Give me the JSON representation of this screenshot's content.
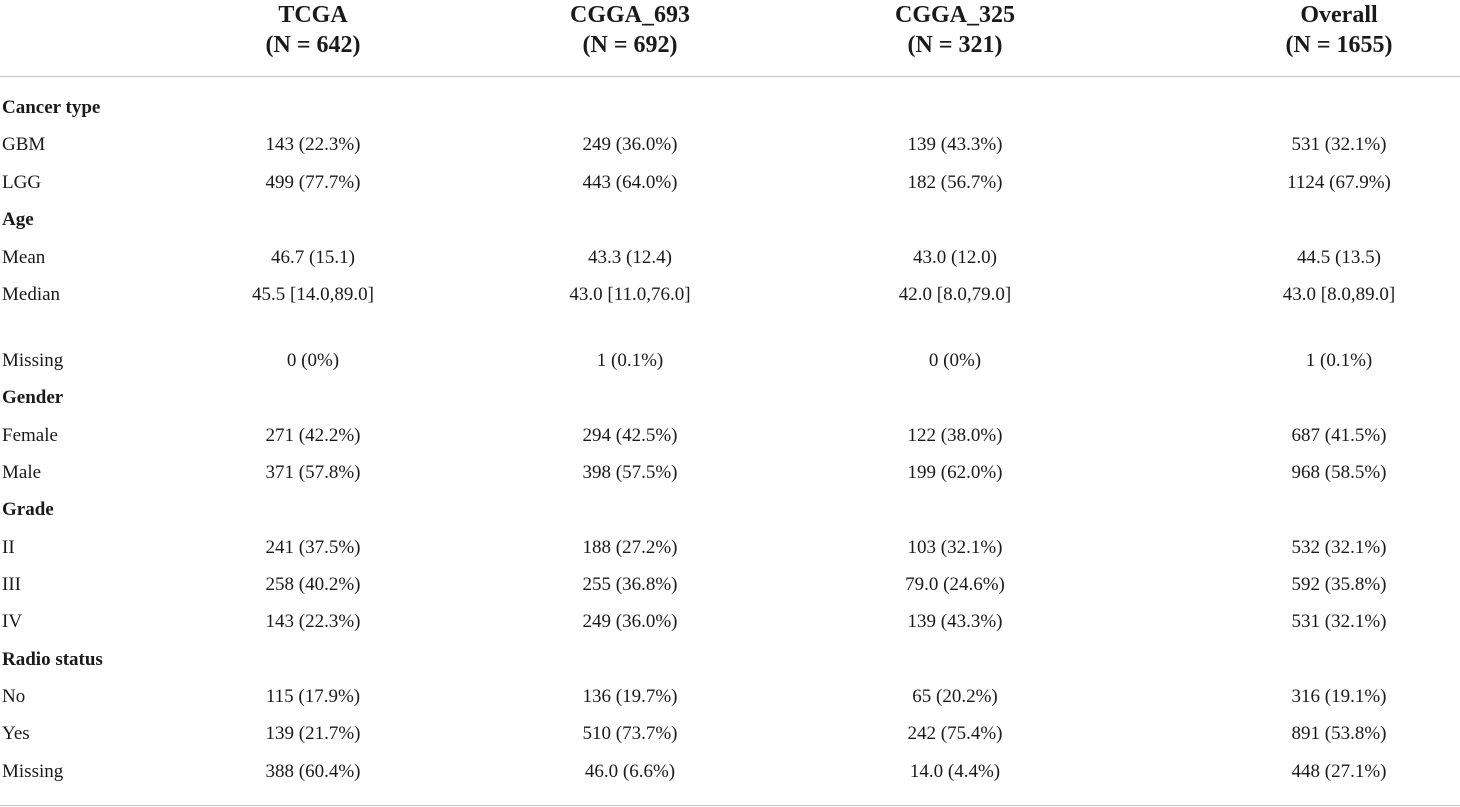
{
  "table": {
    "columns": [
      {
        "name": "TCGA",
        "n": "(N = 642)"
      },
      {
        "name": "CGGA_693",
        "n": "(N = 692)"
      },
      {
        "name": "CGGA_325",
        "n": "(N = 321)"
      },
      {
        "name": "Overall",
        "n": "(N = 1655)"
      }
    ],
    "rows": [
      {
        "type": "section",
        "label": "Cancer type"
      },
      {
        "type": "data",
        "label": "GBM",
        "values": [
          "143 (22.3%)",
          "249 (36.0%)",
          "139 (43.3%)",
          "531 (32.1%)"
        ]
      },
      {
        "type": "data",
        "label": "LGG",
        "values": [
          "499 (77.7%)",
          "443 (64.0%)",
          "182 (56.7%)",
          "1124 (67.9%)"
        ]
      },
      {
        "type": "section",
        "label": "Age"
      },
      {
        "type": "data",
        "label": "Mean",
        "values": [
          "46.7 (15.1)",
          "43.3 (12.4)",
          "43.0 (12.0)",
          "44.5 (13.5)"
        ]
      },
      {
        "type": "data",
        "label": "Median",
        "values": [
          "45.5 [14.0,89.0]",
          "43.0 [11.0,76.0]",
          "42.0 [8.0,79.0]",
          "43.0 [8.0,89.0]"
        ]
      },
      {
        "type": "data",
        "label": "Missing",
        "values": [
          "0 (0%)",
          "1 (0.1%)",
          "0 (0%)",
          "1 (0.1%)"
        ]
      },
      {
        "type": "section",
        "label": "Gender"
      },
      {
        "type": "data",
        "label": "Female",
        "values": [
          "271 (42.2%)",
          "294 (42.5%)",
          "122 (38.0%)",
          "687 (41.5%)"
        ]
      },
      {
        "type": "data",
        "label": "Male",
        "values": [
          "371 (57.8%)",
          "398 (57.5%)",
          "199 (62.0%)",
          "968 (58.5%)"
        ]
      },
      {
        "type": "section",
        "label": "Grade"
      },
      {
        "type": "data",
        "label": "II",
        "values": [
          "241 (37.5%)",
          "188 (27.2%)",
          "103 (32.1%)",
          "532 (32.1%)"
        ]
      },
      {
        "type": "data",
        "label": "III",
        "values": [
          "258 (40.2%)",
          "255 (36.8%)",
          "79.0 (24.6%)",
          "592 (35.8%)"
        ]
      },
      {
        "type": "data",
        "label": "IV",
        "values": [
          "143 (22.3%)",
          "249 (36.0%)",
          "139 (43.3%)",
          "531 (32.1%)"
        ]
      },
      {
        "type": "section",
        "label": "Radio status"
      },
      {
        "type": "data",
        "label": "No",
        "values": [
          "115 (17.9%)",
          "136 (19.7%)",
          "65 (20.2%)",
          "316 (19.1%)"
        ]
      },
      {
        "type": "data",
        "label": "Yes",
        "values": [
          "139 (21.7%)",
          "510 (73.7%)",
          "242 (75.4%)",
          "891 (53.8%)"
        ]
      },
      {
        "type": "data",
        "label": "Missing",
        "values": [
          "388 (60.4%)",
          "46.0 (6.6%)",
          "14.0 (4.4%)",
          "448 (27.1%)"
        ]
      }
    ]
  }
}
